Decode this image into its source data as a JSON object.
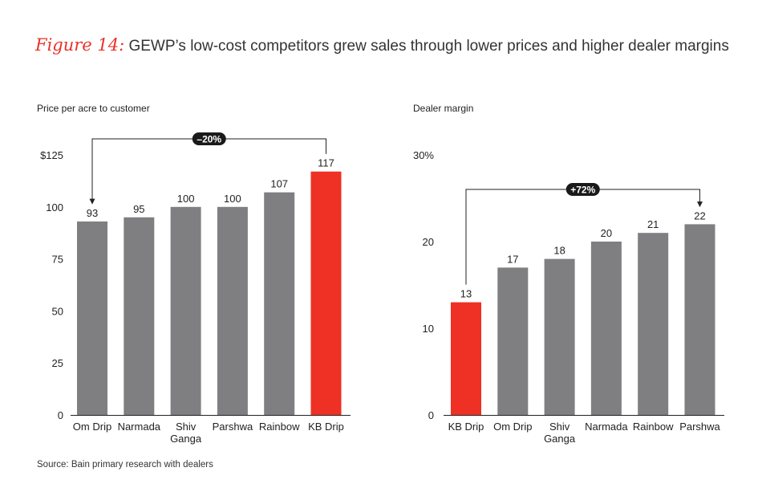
{
  "figure": {
    "label": "Figure 14:",
    "title": "GEWP’s low-cost competitors grew sales through lower prices and higher dealer margins",
    "source": "Source: Bain primary research with dealers"
  },
  "colors": {
    "bar": "#7f7f81",
    "highlight": "#ee3124",
    "callout": "#1a1a1a"
  },
  "chart_data": [
    {
      "type": "bar",
      "title": "Price per acre to customer",
      "categories": [
        "Om Drip",
        "Narmada",
        "Shiv Ganga",
        "Parshwa",
        "Rainbow",
        "KB Drip"
      ],
      "values": [
        93,
        95,
        100,
        100,
        107,
        117
      ],
      "data_labels": [
        "93",
        "95",
        "100",
        "100",
        "107",
        "117"
      ],
      "highlight": "KB Drip",
      "ylim": [
        0,
        125
      ],
      "yticks": [
        0,
        25,
        50,
        75,
        100,
        125
      ],
      "ytick_labels": [
        "0",
        "25",
        "50",
        "75",
        "100",
        "$125"
      ],
      "grid": false,
      "annotation": {
        "text": "–20%",
        "from": "KB Drip",
        "to": "Om Drip"
      }
    },
    {
      "type": "bar",
      "title": "Dealer margin",
      "categories": [
        "KB Drip",
        "Om Drip",
        "Shiv Ganga",
        "Narmada",
        "Rainbow",
        "Parshwa"
      ],
      "values": [
        13,
        17,
        18,
        20,
        21,
        22
      ],
      "data_labels": [
        "13",
        "17",
        "18",
        "20",
        "21",
        "22"
      ],
      "highlight": "KB Drip",
      "ylim": [
        0,
        30
      ],
      "yticks": [
        0,
        10,
        20,
        30
      ],
      "ytick_labels": [
        "0",
        "10",
        "20",
        "30%"
      ],
      "grid": false,
      "annotation": {
        "text": "+72%",
        "from": "KB Drip",
        "to": "Parshwa"
      }
    }
  ]
}
